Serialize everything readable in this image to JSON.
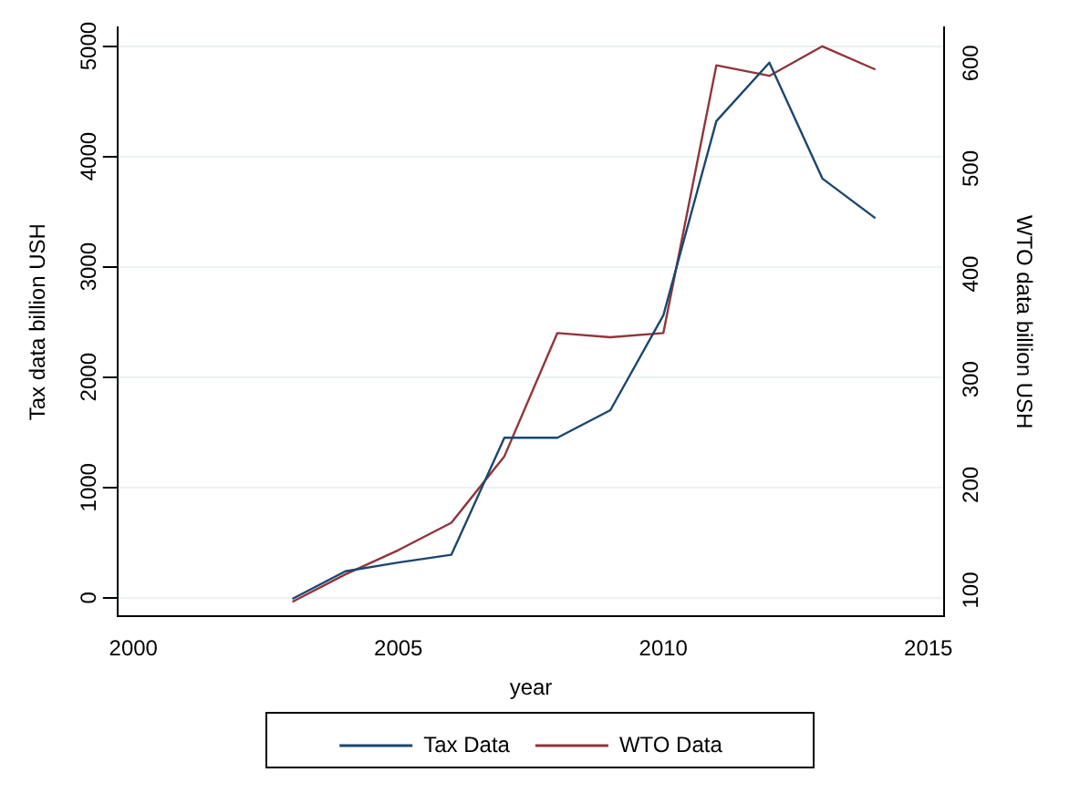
{
  "chart_data": {
    "type": "line",
    "xlabel": "year",
    "ylabel": "Tax data billion USH",
    "y2label": "WTO data billion USH",
    "x": [
      2003,
      2004,
      2005,
      2006,
      2007,
      2008,
      2009,
      2010,
      2011,
      2012,
      2013,
      2014
    ],
    "series": [
      {
        "name": "Tax Data",
        "color": "#1a476f",
        "values": [
          -10,
          240,
          320,
          390,
          1450,
          1450,
          1700,
          2560,
          4320,
          4850,
          3800,
          3440
        ]
      },
      {
        "name": "WTO Data",
        "color": "#90353b",
        "axis": "y2",
        "values": [
          89,
          115,
          138,
          164,
          227,
          344,
          340,
          344,
          598,
          588,
          616,
          594
        ]
      }
    ],
    "xlim": [
      1999.7,
      2015.3
    ],
    "xticks": [
      2000,
      2005,
      2010,
      2015
    ],
    "ylim": [
      -170,
      5170
    ],
    "yticks": [
      0,
      1000,
      2000,
      3000,
      4000,
      5000
    ],
    "y2lim": [
      75,
      634
    ],
    "y2ticks": [
      100,
      200,
      300,
      400,
      500,
      600
    ],
    "grid": "y",
    "legend": "bottom",
    "marker": "none",
    "line_style": "solid"
  }
}
